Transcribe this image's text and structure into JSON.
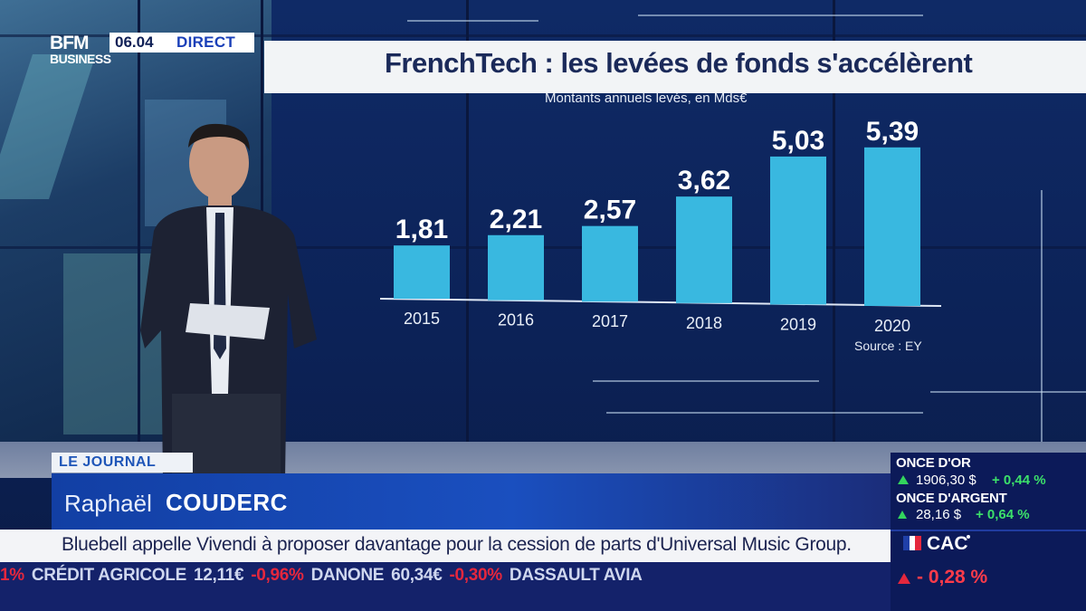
{
  "broadcast": {
    "logo_top": "BFM",
    "logo_bottom": "BUSINESS",
    "time": "06.04",
    "live_label": "DIRECT"
  },
  "chart_data": {
    "type": "bar",
    "title": "FrenchTech : les levées de fonds s'accélèrent",
    "subtitle": "Montants annuels levés, en Mds€",
    "categories": [
      "2015",
      "2016",
      "2017",
      "2018",
      "2019",
      "2020"
    ],
    "values": [
      1.81,
      2.21,
      2.57,
      3.62,
      5.03,
      5.39
    ],
    "value_labels": [
      "1,81",
      "2,21",
      "2,57",
      "3,62",
      "5,03",
      "5,39"
    ],
    "source": "Source : EY",
    "bar_color": "#39b8e0",
    "ylim": [
      0,
      6
    ]
  },
  "lower_third": {
    "section_tag": "LE JOURNAL",
    "presenter_first": "Raphaël",
    "presenter_last": "COUDERC",
    "headline": "Bluebell appelle Vivendi à proposer davantage pour la cession de parts d'Universal Music Group."
  },
  "ticker": {
    "items": [
      {
        "text": "1%",
        "negative": true
      },
      {
        "text": "CRÉDIT AGRICOLE",
        "negative": false
      },
      {
        "text": "12,11€",
        "negative": false
      },
      {
        "text": "-0,96%",
        "negative": true
      },
      {
        "text": "DANONE",
        "negative": false
      },
      {
        "text": "60,34€",
        "negative": false
      },
      {
        "text": "-0,30%",
        "negative": true
      },
      {
        "text": "DASSAULT AVIA",
        "negative": false
      }
    ]
  },
  "markets": {
    "gold_label": "ONCE D'OR",
    "gold_value": "1906,30 $",
    "gold_change": "+ 0,44 %",
    "silver_label": "ONCE D'ARGENT",
    "silver_value": "28,16 $",
    "silver_change": "+ 0,64 %",
    "index_label": "CAC",
    "index_change": "- 0,28 %",
    "up_color": "#33d45d",
    "down_color": "#e5273d"
  }
}
